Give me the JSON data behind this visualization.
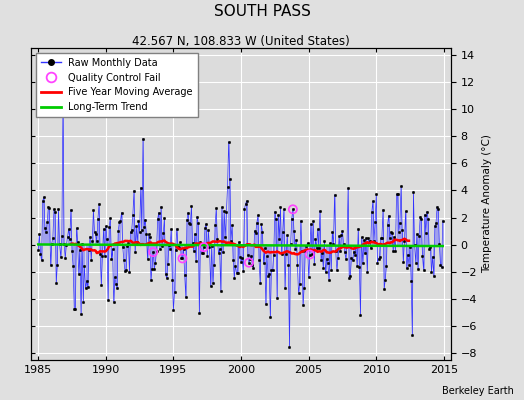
{
  "title": "SOUTH PASS",
  "subtitle": "42.567 N, 108.833 W (United States)",
  "ylabel": "Temperature Anomaly (°C)",
  "xlabel_note": "Berkeley Earth",
  "xlim": [
    1984.5,
    2015.5
  ],
  "ylim": [
    -8.5,
    14.5
  ],
  "yticks": [
    -8,
    -6,
    -4,
    -2,
    0,
    2,
    4,
    6,
    8,
    10,
    12,
    14
  ],
  "xticks": [
    1985,
    1990,
    1995,
    2000,
    2005,
    2010,
    2015
  ],
  "raw_color": "#3333FF",
  "raw_line_color": "#6666FF",
  "moving_avg_color": "#FF0000",
  "trend_color": "#00CC00",
  "qc_fail_color": "#FF44FF",
  "background_color": "#E0E0E0",
  "plot_bg_color": "#DCDCDC",
  "seed": 12345,
  "n_months": 360,
  "start_year": 1985,
  "noise_std": 1.5,
  "trend_slope": 0.035,
  "trend_intercept": 0.3,
  "n_spikes": 15,
  "n_qc_fail": 6
}
